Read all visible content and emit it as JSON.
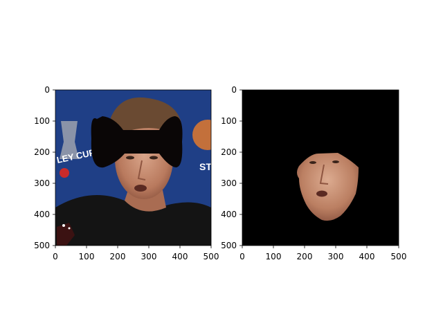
{
  "figure": {
    "panels": [
      {
        "id": "left",
        "content": "photo of a man at a press conference with a black bow-tie-shaped occlusion over the upper face",
        "xticks": [
          "0",
          "100",
          "200",
          "300",
          "400",
          "500"
        ],
        "yticks": [
          "0",
          "100",
          "200",
          "300",
          "400",
          "500"
        ],
        "background_color": "#1f3f86",
        "occluder_color": "#0a0606",
        "backdrop_text": [
          "LEY CUP",
          "ST"
        ]
      },
      {
        "id": "right",
        "content": "masked face region on black background",
        "xticks": [
          "0",
          "100",
          "200",
          "300",
          "400",
          "500"
        ],
        "yticks": [
          "0",
          "100",
          "200",
          "300",
          "400",
          "500"
        ],
        "background_color": "#000000"
      }
    ],
    "colors": {
      "skin": "#c99277",
      "skin_shadow": "#a56a52",
      "hair": "#6a4a32",
      "shirt": "#141414"
    }
  }
}
